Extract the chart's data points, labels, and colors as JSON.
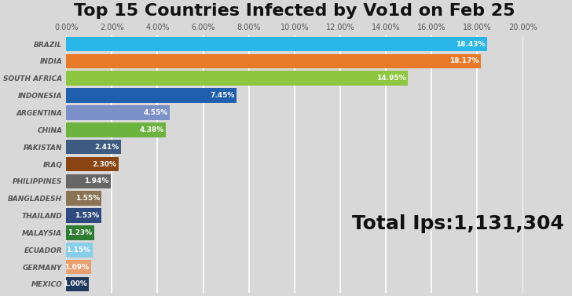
{
  "title": "Top 15 Countries Infected by Vo1d on Feb 25",
  "annotation": "Total Ips:1,131,304",
  "categories": [
    "BRAZIL",
    "INDIA",
    "SOUTH AFRICA",
    "INDONESIA",
    "ARGENTINA",
    "CHINA",
    "PAKISTAN",
    "IRAQ",
    "PHILIPPINES",
    "BANGLADESH",
    "THAILAND",
    "MALAYSIA",
    "ECUADOR",
    "GERMANY",
    "MEXICO"
  ],
  "values": [
    18.43,
    18.17,
    14.95,
    7.45,
    4.55,
    4.38,
    2.41,
    2.3,
    1.94,
    1.55,
    1.53,
    1.23,
    1.15,
    1.09,
    1.0
  ],
  "labels": [
    "18.43%",
    "18.17%",
    "14.95%",
    "7.45%",
    "4.55%",
    "4.38%",
    "2.41%",
    "2.30%",
    "1.94%",
    "1.55%",
    "1.53%",
    "1.23%",
    "1.15%",
    "1.09%",
    "1.00%"
  ],
  "bar_colors": [
    "#29B6E8",
    "#E87A2A",
    "#8DC63F",
    "#1F5FAD",
    "#7B8FC9",
    "#6DB33F",
    "#3D5A80",
    "#8B4513",
    "#666666",
    "#8B7355",
    "#2E4A7E",
    "#2E7D32",
    "#87CEEB",
    "#E8A070",
    "#1F3A5F"
  ],
  "background_color": "#D8D8D8",
  "xlim": [
    0,
    20
  ],
  "xtick_values": [
    0,
    2,
    4,
    6,
    8,
    10,
    12,
    14,
    16,
    18,
    20
  ],
  "xtick_labels": [
    "0.00%",
    "2.00%",
    "4.00%",
    "6.00%",
    "8.00%",
    "10.00%",
    "12.00%",
    "14.00%",
    "16.00%",
    "18.00%",
    "20.00%"
  ],
  "title_fontsize": 16,
  "label_fontsize": 6.5,
  "tick_fontsize": 7,
  "bar_label_fontsize": 6.5,
  "annotation_fontsize": 18,
  "grid_color": "#C8C8C8"
}
